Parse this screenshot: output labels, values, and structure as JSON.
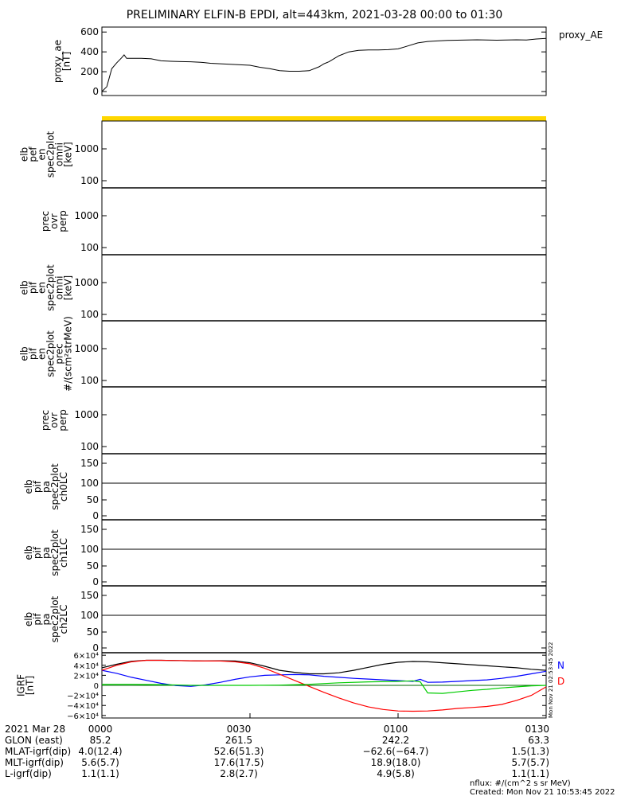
{
  "title": "PRELIMINARY ELFIN-B EPDI, alt=443km, 2021-03-28 00:00 to 01:30",
  "colors": {
    "yellow_bar": "#ffd700",
    "N": "#0000ff",
    "D": "#ff0000",
    "H": "#00cc00",
    "total": "#000000"
  },
  "panels": [
    {
      "label_lines": [
        "proxy_ae",
        "[nT]"
      ],
      "ticks": [
        "600",
        "400",
        "200",
        "0"
      ],
      "legend": "proxy_AE"
    },
    {
      "label_lines": [
        "elb",
        "pef",
        "en",
        "spec2plot",
        "omni",
        "[keV]"
      ],
      "ticks": [
        "1000",
        "100"
      ]
    },
    {
      "label_lines": [
        "prec",
        "ovr",
        "perp"
      ],
      "ticks": [
        "1000",
        "100"
      ]
    },
    {
      "label_lines": [
        "elb",
        "pif",
        "en",
        "spec2plot",
        "omni",
        "[keV]"
      ],
      "ticks": [
        "1000",
        "100"
      ]
    },
    {
      "label_lines": [
        "elb",
        "pif",
        "en",
        "spec2plot",
        "prec",
        "#/(scm²strMeV)"
      ],
      "ticks": [
        "1000",
        "100"
      ]
    },
    {
      "label_lines": [
        "prec",
        "ovr",
        "perp"
      ],
      "ticks": [
        "1000",
        "100"
      ]
    },
    {
      "label_lines": [
        "elb",
        "pif",
        "pa",
        "spec2plot",
        "ch0LC"
      ],
      "ticks": [
        "150",
        "100",
        "50",
        "0"
      ]
    },
    {
      "label_lines": [
        "elb",
        "pif",
        "pa",
        "spec2plot",
        "ch1LC"
      ],
      "ticks": [
        "150",
        "100",
        "50",
        "0"
      ]
    },
    {
      "label_lines": [
        "elb",
        "pif",
        "pa",
        "spec2plot",
        "ch2LC"
      ],
      "ticks": [
        "150",
        "100",
        "50",
        "0"
      ]
    },
    {
      "label_lines": [
        "IGRF",
        "[nT]"
      ],
      "ticks": [
        "6×10⁴",
        "4×10⁴",
        "2×10⁴",
        "0",
        "−2×10⁴",
        "−4×10⁴",
        "−6×10⁴"
      ],
      "legend_labels": [
        "N",
        "D"
      ],
      "side_text": "Mon Nov 21 02:53:45 2022"
    }
  ],
  "orbit_table": {
    "rows": [
      {
        "label": "2021 Mar 28",
        "values": [
          "0000",
          "0030",
          "0100",
          "0130"
        ]
      },
      {
        "label": "GLON (east)",
        "values": [
          "85.2",
          "261.5",
          "242.2",
          "63.3"
        ]
      },
      {
        "label": "MLAT-igrf(dip)",
        "values": [
          "4.0(12.4)",
          "52.6(51.3)",
          "−62.6(−64.7)",
          "1.5(1.3)"
        ]
      },
      {
        "label": "MLT-igrf(dip)",
        "values": [
          "5.6(5.7)",
          "17.6(17.5)",
          "18.9(18.0)",
          "5.7(5.7)"
        ]
      },
      {
        "label": "L-igrf(dip)",
        "values": [
          "1.1(1.1)",
          "2.8(2.7)",
          "4.9(5.8)",
          "1.1(1.1)"
        ]
      }
    ]
  },
  "footer": {
    "line1": "nflux: #/(cm^2 s sr MeV)",
    "line2": "Created: Mon Nov 21 10:53:45 2022"
  },
  "chart_data": [
    {
      "type": "line",
      "name": "proxy_ae",
      "ylabel": "proxy_ae [nT]",
      "ylim": [
        -40,
        650
      ],
      "x_unit": "minutes after 00:00",
      "xlim": [
        0,
        90
      ],
      "series": [
        {
          "name": "proxy_AE",
          "x": [
            0,
            1,
            2,
            3,
            4,
            4.5,
            5,
            6,
            8,
            10,
            12,
            14,
            16,
            18,
            20,
            22,
            24,
            26,
            28,
            30,
            32,
            34,
            36,
            38,
            40,
            42,
            44,
            45,
            46,
            48,
            50,
            52,
            54,
            56,
            58,
            60,
            62,
            64,
            66,
            68,
            70,
            72,
            74,
            76,
            78,
            80,
            82,
            84,
            86,
            88,
            90
          ],
          "values": [
            0,
            50,
            230,
            290,
            340,
            370,
            335,
            335,
            335,
            330,
            310,
            305,
            302,
            300,
            295,
            285,
            280,
            275,
            270,
            265,
            245,
            230,
            210,
            205,
            205,
            210,
            250,
            280,
            300,
            360,
            400,
            415,
            420,
            420,
            422,
            430,
            460,
            490,
            505,
            510,
            515,
            518,
            520,
            522,
            520,
            518,
            520,
            522,
            520,
            530,
            535
          ]
        }
      ]
    },
    {
      "type": "line",
      "name": "IGRF",
      "ylabel": "IGRF [nT]",
      "ylim": [
        -65000,
        65000
      ],
      "x_unit": "minutes after 00:00",
      "xlim": [
        0,
        90
      ],
      "series": [
        {
          "name": "total",
          "x": [
            0,
            3,
            6,
            9,
            12,
            15,
            18,
            21,
            24,
            27,
            30,
            33,
            36,
            39,
            42,
            45,
            48,
            51,
            54,
            57,
            60,
            63,
            66,
            69,
            72,
            75,
            78,
            81,
            84,
            87,
            90
          ],
          "values": [
            35000,
            42000,
            48000,
            50000,
            50000,
            49500,
            49000,
            48500,
            49000,
            48500,
            45000,
            38000,
            30000,
            26000,
            23000,
            23000,
            25000,
            30000,
            36000,
            42000,
            46000,
            47500,
            47000,
            45000,
            43000,
            41000,
            39000,
            37000,
            35000,
            32000,
            30000
          ]
        },
        {
          "name": "N",
          "x": [
            0,
            3,
            6,
            9,
            12,
            15,
            18,
            21,
            24,
            27,
            30,
            33,
            36,
            39,
            42,
            45,
            48,
            51,
            54,
            57,
            60,
            63,
            64.5,
            65,
            66,
            69,
            72,
            75,
            78,
            81,
            84,
            87,
            90
          ],
          "values": [
            30000,
            24000,
            16000,
            10000,
            4000,
            -500,
            -2000,
            1000,
            6000,
            12000,
            17000,
            20000,
            21000,
            21500,
            21000,
            18000,
            16000,
            14000,
            12500,
            11000,
            9500,
            8000,
            12000,
            10000,
            6000,
            6500,
            8000,
            9500,
            11000,
            14000,
            18000,
            23000,
            28000
          ]
        },
        {
          "name": "D",
          "x": [
            0,
            3,
            6,
            9,
            12,
            15,
            18,
            21,
            24,
            27,
            30,
            33,
            36,
            39,
            42,
            45,
            48,
            51,
            54,
            57,
            60,
            63,
            66,
            69,
            72,
            75,
            78,
            81,
            84,
            87,
            90
          ],
          "values": [
            30000,
            40000,
            47000,
            50000,
            50000,
            49500,
            49000,
            48500,
            48500,
            47000,
            43000,
            34000,
            22000,
            10000,
            -2000,
            -14000,
            -25000,
            -35000,
            -43000,
            -48000,
            -51000,
            -51500,
            -51000,
            -49000,
            -46000,
            -44000,
            -42000,
            -38000,
            -30000,
            -20000,
            -3000
          ]
        },
        {
          "name": "H",
          "x": [
            0,
            6,
            12,
            18,
            24,
            30,
            36,
            42,
            48,
            54,
            60,
            63,
            64.5,
            66,
            69,
            72,
            75,
            78,
            81,
            84,
            87,
            90
          ],
          "values": [
            2000,
            2000,
            1500,
            0,
            0,
            0,
            500,
            2000,
            5000,
            7000,
            8000,
            9000,
            7000,
            -15000,
            -16000,
            -13000,
            -10000,
            -8000,
            -5000,
            -3000,
            -1000,
            0
          ]
        }
      ]
    }
  ]
}
